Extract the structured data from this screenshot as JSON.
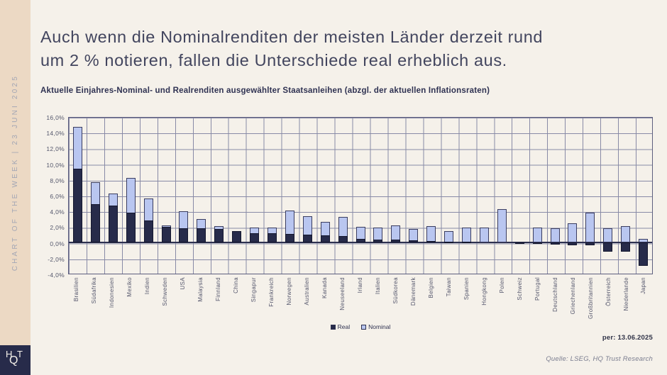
{
  "sidebar": {
    "vertical_label": "CHART OF THE WEEK | 23 JUNI 2025",
    "logo": {
      "h": "H",
      "q": "Q",
      "t": "T"
    }
  },
  "header": {
    "title_line1": "Auch wenn die Nominalrenditen der meisten Länder derzeit rund",
    "title_line2": "um 2 % notieren, fallen die Unterschiede real erheblich aus.",
    "subtitle": "Aktuelle Einjahres-Nominal- und Realrenditen ausgewählter Staatsanleihen (abzgl. der aktuellen Inflationsraten)"
  },
  "chart_data": {
    "type": "bar",
    "overlay": true,
    "categories": [
      "Brasilien",
      "Südafrika",
      "Indonesien",
      "Mexiko",
      "Indien",
      "Schweden",
      "USA",
      "Malaysia",
      "Finnland",
      "China",
      "Singapur",
      "Frankreich",
      "Norwegen",
      "Australien",
      "Kanada",
      "Neuseeland",
      "Irland",
      "Italien",
      "Südkorea",
      "Dänemark",
      "Belgien",
      "Taiwan",
      "Spanien",
      "Hongkong",
      "Polen",
      "Schweiz",
      "Portugal",
      "Deutschland",
      "Griechenland",
      "Großbritannien",
      "Österreich",
      "Niederlande",
      "Japan"
    ],
    "series": [
      {
        "name": "Real",
        "color": "#272b4a",
        "values": [
          9.5,
          4.9,
          4.7,
          3.8,
          2.8,
          2.0,
          1.8,
          1.8,
          1.7,
          1.5,
          1.2,
          1.2,
          1.1,
          1.0,
          0.9,
          0.8,
          0.5,
          0.4,
          0.4,
          0.3,
          0.2,
          0.1,
          0.1,
          0.0,
          0.0,
          -0.2,
          -0.2,
          -0.3,
          -0.4,
          -0.4,
          -1.2,
          -1.2,
          -3.0
        ]
      },
      {
        "name": "Nominal",
        "color": "#b9c6f0",
        "values": [
          14.8,
          7.7,
          6.3,
          8.3,
          5.6,
          2.2,
          4.0,
          3.0,
          2.1,
          1.4,
          1.9,
          1.9,
          4.1,
          3.4,
          2.6,
          3.3,
          2.0,
          1.9,
          2.2,
          1.7,
          2.1,
          1.5,
          1.9,
          1.9,
          4.3,
          -0.1,
          1.9,
          1.8,
          2.5,
          3.8,
          1.8,
          2.1,
          0.5
        ]
      }
    ],
    "ylim": [
      -4,
      16
    ],
    "ytick_step": 2,
    "ytick_labels": [
      "16,0%",
      "14,0%",
      "12,0%",
      "10,0%",
      "8,0%",
      "6,0%",
      "4,0%",
      "2,0%",
      "0,0%",
      "-2,0%",
      "-4,0%"
    ],
    "grid": true,
    "legend_position": "bottom",
    "title": "Aktuelle Einjahres-Nominal- und Realrenditen ausgewählter Staatsanleihen (abzgl. der aktuellen Inflationsraten)"
  },
  "footer": {
    "as_of": "per: 13.06.2025",
    "source": "Quelle: LSEG, HQ Trust Research"
  }
}
